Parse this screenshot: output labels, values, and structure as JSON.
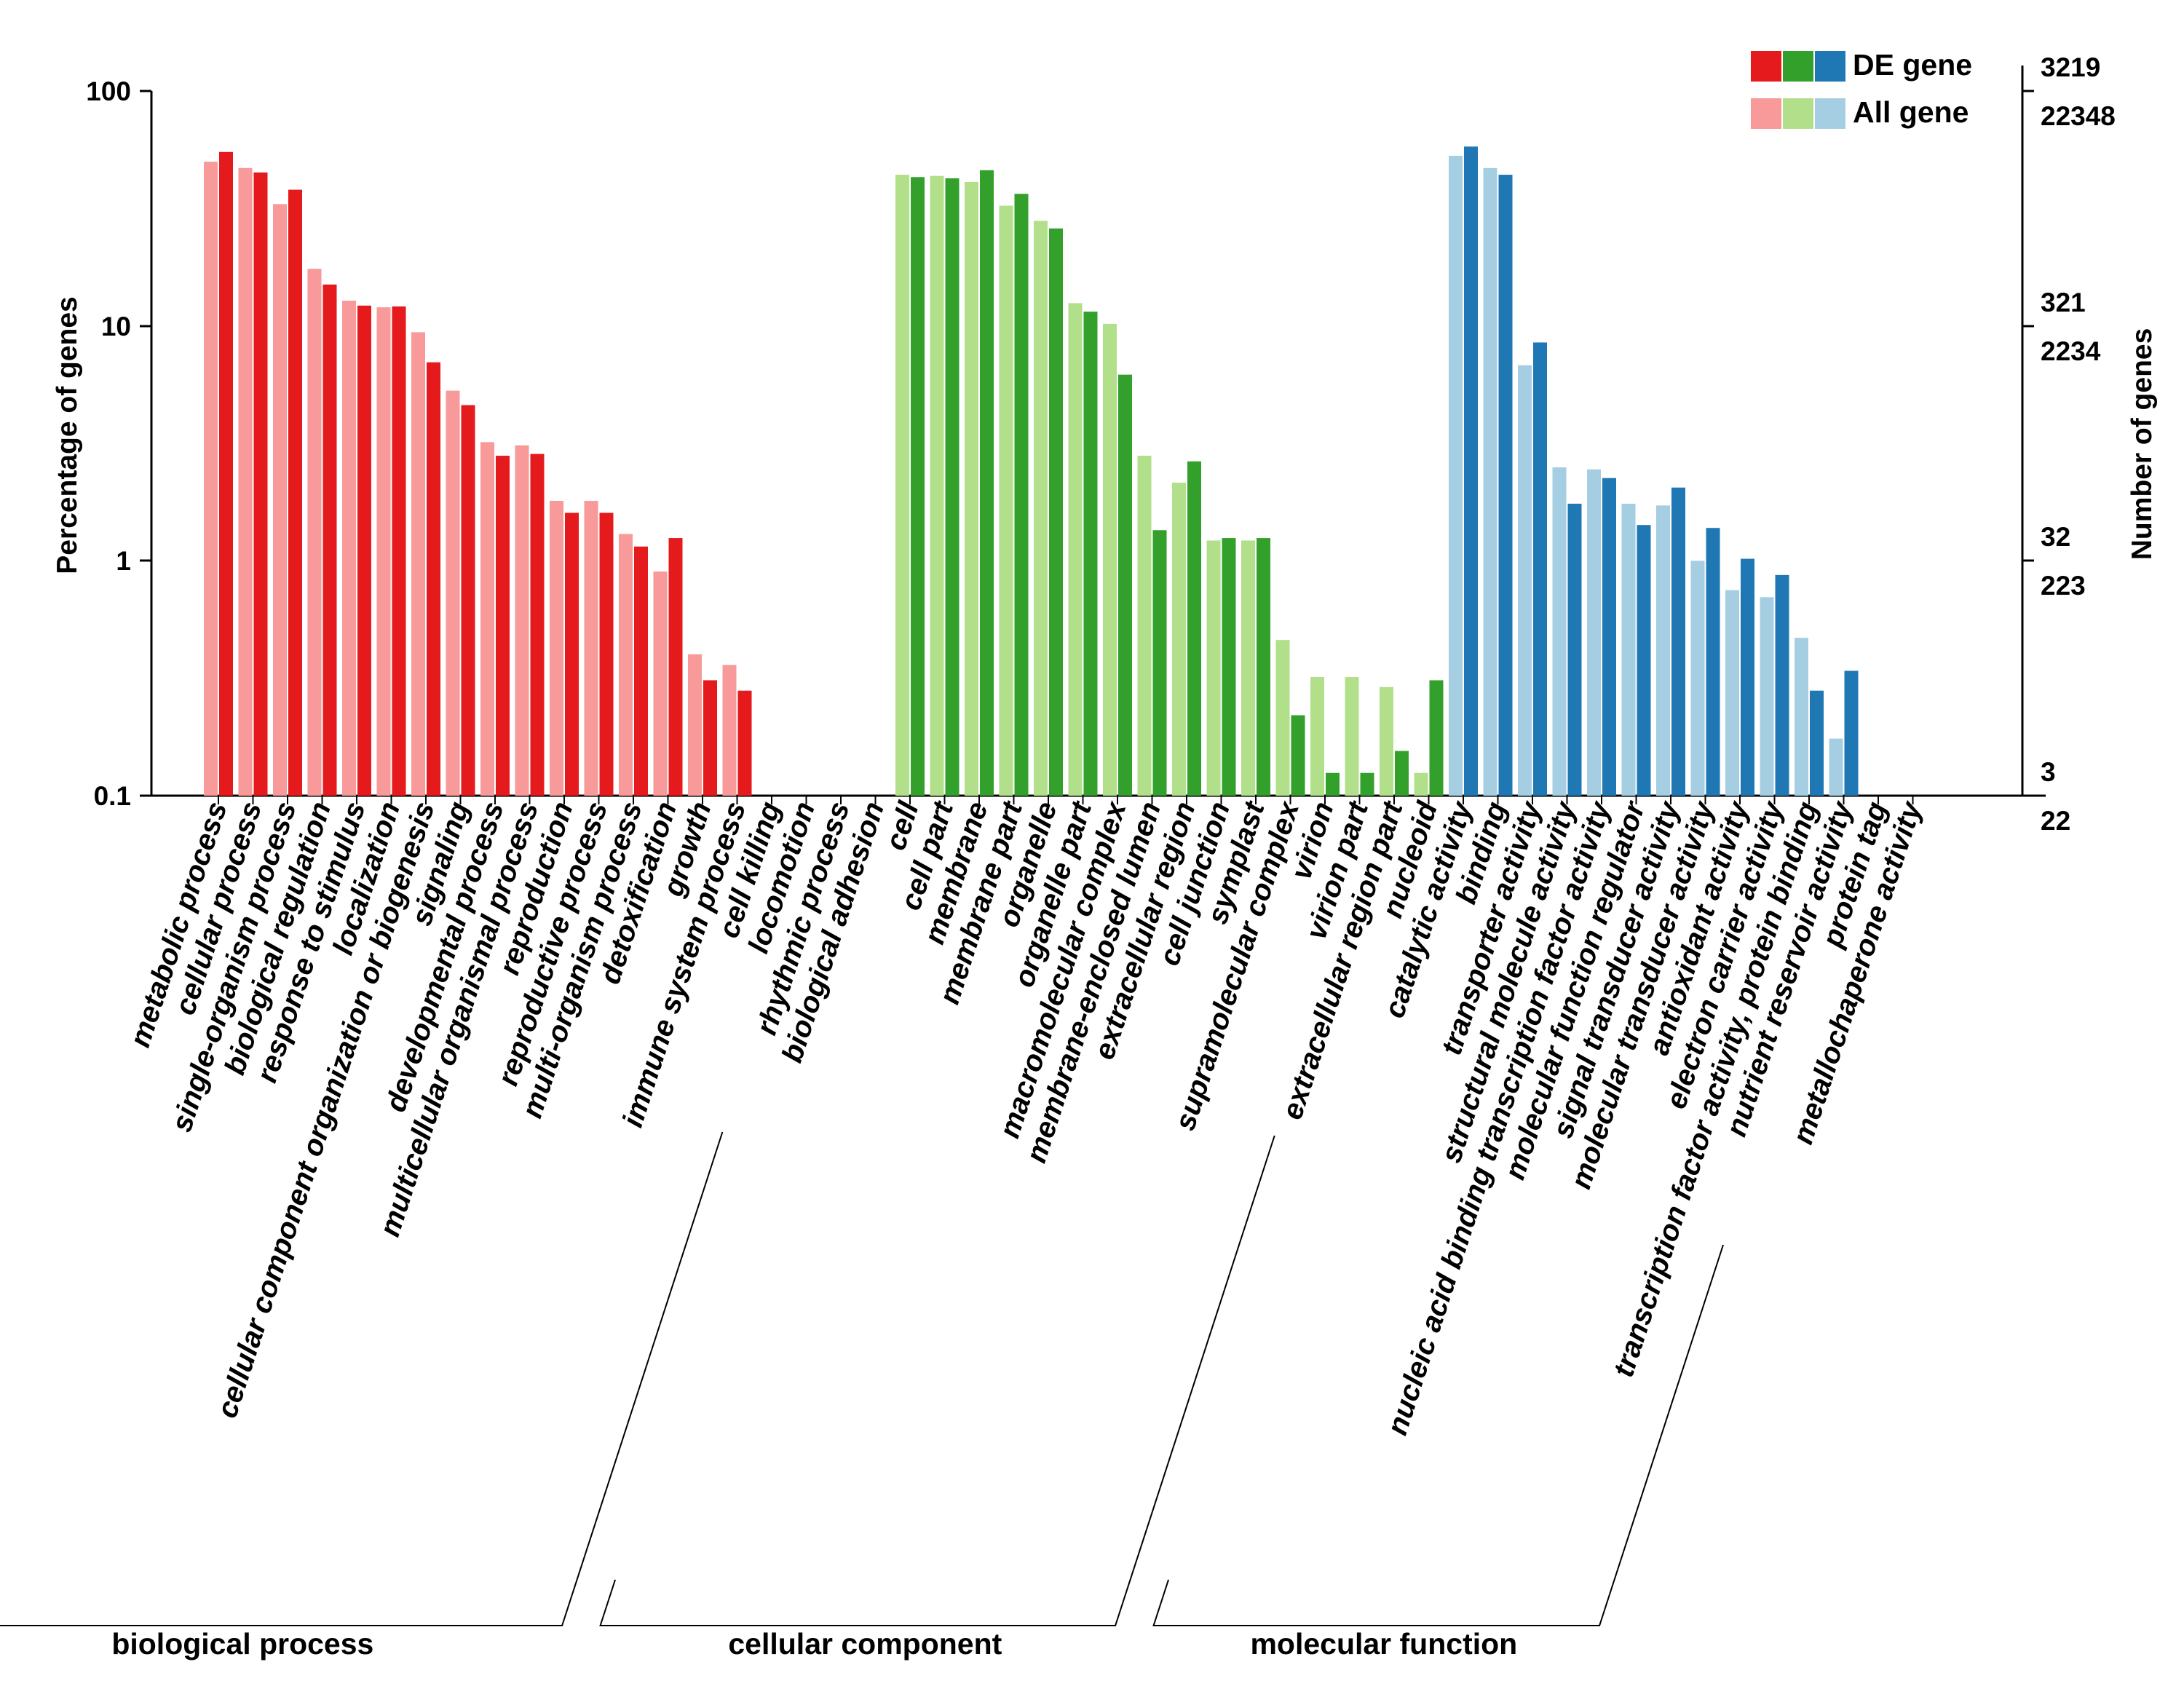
{
  "chart_data": {
    "type": "bar",
    "scale": "log",
    "ylim": [
      0.1,
      100
    ],
    "ylabel": "Percentage of genes",
    "y2label": "Number of genes",
    "yticks": [
      "100",
      "10",
      "1",
      "0.1"
    ],
    "yticks_values": [
      100,
      10,
      1,
      0.1
    ],
    "right_ticks": [
      {
        "de": "3219",
        "all": "22348"
      },
      {
        "de": "321",
        "all": "2234"
      },
      {
        "de": "32",
        "all": "223"
      },
      {
        "de": "3",
        "all": "22"
      }
    ],
    "legend": {
      "de_label": "DE gene",
      "all_label": "All gene"
    },
    "groups": [
      {
        "name": "biological process",
        "de_color": "#e41a1c",
        "all_color": "#f79a99",
        "categories": [
          "metabolic process",
          "cellular process",
          "single-organism process",
          "biological regulation",
          "response to stimulus",
          "localization",
          "cellular component organization or biogenesis",
          "signaling",
          "developmental process",
          "multicellular organismal process",
          "reproduction",
          "reproductive process",
          "multi-organism process",
          "detoxification",
          "growth",
          "immune system process",
          "cell killing",
          "locomotion",
          "rhythmic process",
          "biological adhesion"
        ],
        "all": [
          50,
          47,
          33,
          17.5,
          12.8,
          12,
          9.4,
          5.3,
          3.2,
          3.1,
          1.8,
          1.8,
          1.3,
          0.9,
          0.4,
          0.36,
          0,
          0,
          0,
          0
        ],
        "de": [
          55,
          45,
          38,
          15,
          12.2,
          12.1,
          7,
          4.6,
          2.8,
          2.85,
          1.6,
          1.6,
          1.15,
          1.25,
          0.31,
          0.28,
          0,
          0,
          0,
          0
        ]
      },
      {
        "name": "cellular component",
        "de_color": "#33a02c",
        "all_color": "#b2df8a",
        "categories": [
          "cell",
          "cell part",
          "membrane",
          "membrane part",
          "organelle",
          "organelle part",
          "macromolecular complex",
          "membrane-enclosed lumen",
          "extracellular region",
          "cell junction",
          "symplast",
          "supramolecular complex",
          "virion",
          "virion part",
          "extracellular region part",
          "nucleoid"
        ],
        "all": [
          44,
          43.5,
          41,
          32.5,
          28,
          12.5,
          10.2,
          2.8,
          2.15,
          1.22,
          1.22,
          0.46,
          0.32,
          0.32,
          0.29,
          0.125
        ],
        "de": [
          43,
          42.5,
          46,
          36.5,
          26,
          11.5,
          6.2,
          1.35,
          2.65,
          1.25,
          1.25,
          0.22,
          0.125,
          0.125,
          0.155,
          0.31
        ]
      },
      {
        "name": "molecular function",
        "de_color": "#1f78b4",
        "all_color": "#a6cee3",
        "categories": [
          "catalytic activity",
          "binding",
          "transporter activity",
          "structural molecule activity",
          "nucleic acid binding transcription factor activity",
          "molecular function regulator",
          "signal transducer activity",
          "molecular transducer activity",
          "antioxidant activity",
          "electron carrier activity",
          "transcription factor activity, protein binding",
          "nutrient reservoir activity",
          "protein tag",
          "metallochaperone activity"
        ],
        "all": [
          53,
          47,
          6.8,
          2.5,
          2.45,
          1.75,
          1.72,
          1.0,
          0.75,
          0.7,
          0.47,
          0.175,
          0,
          0
        ],
        "de": [
          58,
          44,
          8.5,
          1.75,
          2.25,
          1.42,
          2.05,
          1.38,
          1.02,
          0.87,
          0.28,
          0.34,
          0,
          0
        ]
      }
    ]
  }
}
